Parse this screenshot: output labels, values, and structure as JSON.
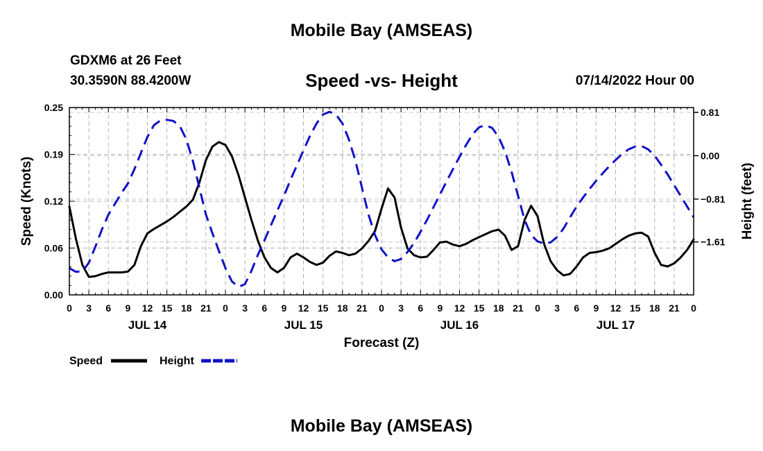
{
  "header": {
    "title": "Mobile Bay (AMSEAS)",
    "station": "GDXM6 at 26 Feet",
    "coords": "30.3590N  88.4200W",
    "chart_title": "Speed -vs- Height",
    "date": "07/14/2022 Hour 00",
    "footer_title": "Mobile Bay (AMSEAS)"
  },
  "chart_data": {
    "type": "line",
    "title": "Speed -vs- Height",
    "xlabel": "Forecast (Z)",
    "ylabel": "Speed (Knots)",
    "y2label": "Height (feet)",
    "x_ticks": [
      "0",
      "3",
      "6",
      "9",
      "12",
      "15",
      "18",
      "21",
      "0",
      "3",
      "6",
      "9",
      "12",
      "15",
      "18",
      "21",
      "0",
      "3",
      "6",
      "9",
      "12",
      "15",
      "18",
      "21",
      "0",
      "3",
      "6",
      "9",
      "12",
      "15",
      "18",
      "21",
      "0"
    ],
    "day_labels": [
      {
        "label": "JUL 14",
        "hour": 12
      },
      {
        "label": "JUL 15",
        "hour": 36
      },
      {
        "label": "JUL 16",
        "hour": 60
      },
      {
        "label": "JUL 17",
        "hour": 84
      }
    ],
    "xlim": [
      0,
      96
    ],
    "ylim": [
      0,
      0.25
    ],
    "y_ticks": [
      "0.00",
      "0.06",
      "0.12",
      "0.19",
      "0.25"
    ],
    "y_tick_values": [
      0,
      0.0625,
      0.125,
      0.1875,
      0.25
    ],
    "y2lim": [
      -2.6,
      0.9
    ],
    "y2_ticks": [
      "0.81",
      "0.00",
      "−0.81",
      "−1.61"
    ],
    "y2_tick_values": [
      0.81,
      0,
      -0.81,
      -1.61
    ],
    "legend": [
      {
        "name": "Speed",
        "color": "#000000",
        "style": "solid"
      },
      {
        "name": "Height",
        "color": "#1010c8",
        "style": "dashed"
      }
    ],
    "series": [
      {
        "name": "Speed",
        "axis": "left",
        "color": "#000000",
        "points": [
          [
            0,
            0.118
          ],
          [
            1,
            0.075
          ],
          [
            2,
            0.04
          ],
          [
            3,
            0.024
          ],
          [
            4,
            0.025
          ],
          [
            5,
            0.028
          ],
          [
            6,
            0.03
          ],
          [
            7,
            0.03
          ],
          [
            8,
            0.03
          ],
          [
            9,
            0.031
          ],
          [
            10,
            0.04
          ],
          [
            11,
            0.065
          ],
          [
            12,
            0.082
          ],
          [
            13,
            0.088
          ],
          [
            14,
            0.093
          ],
          [
            15,
            0.098
          ],
          [
            16,
            0.104
          ],
          [
            17,
            0.111
          ],
          [
            18,
            0.118
          ],
          [
            19,
            0.127
          ],
          [
            20,
            0.15
          ],
          [
            21,
            0.18
          ],
          [
            22,
            0.198
          ],
          [
            23,
            0.204
          ],
          [
            24,
            0.2
          ],
          [
            25,
            0.185
          ],
          [
            26,
            0.16
          ],
          [
            27,
            0.13
          ],
          [
            28,
            0.1
          ],
          [
            29,
            0.072
          ],
          [
            30,
            0.05
          ],
          [
            31,
            0.036
          ],
          [
            32,
            0.03
          ],
          [
            33,
            0.036
          ],
          [
            34,
            0.05
          ],
          [
            35,
            0.055
          ],
          [
            36,
            0.05
          ],
          [
            37,
            0.044
          ],
          [
            38,
            0.04
          ],
          [
            39,
            0.043
          ],
          [
            40,
            0.052
          ],
          [
            41,
            0.058
          ],
          [
            42,
            0.056
          ],
          [
            43,
            0.053
          ],
          [
            44,
            0.055
          ],
          [
            45,
            0.062
          ],
          [
            46,
            0.072
          ],
          [
            47,
            0.085
          ],
          [
            48,
            0.115
          ],
          [
            49,
            0.142
          ],
          [
            50,
            0.13
          ],
          [
            51,
            0.09
          ],
          [
            52,
            0.062
          ],
          [
            53,
            0.053
          ],
          [
            54,
            0.05
          ],
          [
            55,
            0.051
          ],
          [
            56,
            0.06
          ],
          [
            57,
            0.07
          ],
          [
            58,
            0.071
          ],
          [
            59,
            0.067
          ],
          [
            60,
            0.065
          ],
          [
            61,
            0.068
          ],
          [
            62,
            0.073
          ],
          [
            63,
            0.077
          ],
          [
            64,
            0.081
          ],
          [
            65,
            0.085
          ],
          [
            66,
            0.087
          ],
          [
            67,
            0.079
          ],
          [
            68,
            0.06
          ],
          [
            69,
            0.065
          ],
          [
            70,
            0.1
          ],
          [
            71,
            0.119
          ],
          [
            72,
            0.105
          ],
          [
            73,
            0.068
          ],
          [
            74,
            0.045
          ],
          [
            75,
            0.033
          ],
          [
            76,
            0.026
          ],
          [
            77,
            0.028
          ],
          [
            78,
            0.038
          ],
          [
            79,
            0.05
          ],
          [
            80,
            0.056
          ],
          [
            81,
            0.057
          ],
          [
            82,
            0.059
          ],
          [
            83,
            0.062
          ],
          [
            84,
            0.068
          ],
          [
            85,
            0.074
          ],
          [
            86,
            0.079
          ],
          [
            87,
            0.082
          ],
          [
            88,
            0.083
          ],
          [
            89,
            0.078
          ],
          [
            90,
            0.056
          ],
          [
            91,
            0.04
          ],
          [
            92,
            0.038
          ],
          [
            93,
            0.042
          ],
          [
            94,
            0.05
          ],
          [
            95,
            0.06
          ],
          [
            96,
            0.074
          ]
        ]
      },
      {
        "name": "Height",
        "axis": "right",
        "color": "#1010c8",
        "points": [
          [
            0,
            -2.1
          ],
          [
            1,
            -2.17
          ],
          [
            2,
            -2.16
          ],
          [
            3,
            -2.0
          ],
          [
            4,
            -1.7
          ],
          [
            5,
            -1.38
          ],
          [
            6,
            -1.1
          ],
          [
            7,
            -0.9
          ],
          [
            8,
            -0.7
          ],
          [
            9,
            -0.52
          ],
          [
            10,
            -0.25
          ],
          [
            11,
            0.05
          ],
          [
            12,
            0.35
          ],
          [
            13,
            0.57
          ],
          [
            14,
            0.66
          ],
          [
            15,
            0.67
          ],
          [
            16,
            0.65
          ],
          [
            17,
            0.55
          ],
          [
            18,
            0.3
          ],
          [
            19,
            -0.1
          ],
          [
            20,
            -0.6
          ],
          [
            21,
            -1.1
          ],
          [
            22,
            -1.45
          ],
          [
            23,
            -1.78
          ],
          [
            24,
            -2.1
          ],
          [
            25,
            -2.35
          ],
          [
            26,
            -2.45
          ],
          [
            27,
            -2.4
          ],
          [
            28,
            -2.15
          ],
          [
            29,
            -1.85
          ],
          [
            30,
            -1.58
          ],
          [
            31,
            -1.3
          ],
          [
            32,
            -1.02
          ],
          [
            33,
            -0.75
          ],
          [
            34,
            -0.45
          ],
          [
            35,
            -0.18
          ],
          [
            36,
            0.1
          ],
          [
            37,
            0.37
          ],
          [
            38,
            0.6
          ],
          [
            39,
            0.77
          ],
          [
            40,
            0.82
          ],
          [
            41,
            0.77
          ],
          [
            42,
            0.6
          ],
          [
            43,
            0.3
          ],
          [
            44,
            -0.1
          ],
          [
            45,
            -0.6
          ],
          [
            46,
            -1.1
          ],
          [
            47,
            -1.48
          ],
          [
            48,
            -1.75
          ],
          [
            49,
            -1.9
          ],
          [
            50,
            -1.97
          ],
          [
            51,
            -1.93
          ],
          [
            52,
            -1.8
          ],
          [
            53,
            -1.63
          ],
          [
            54,
            -1.42
          ],
          [
            55,
            -1.2
          ],
          [
            56,
            -0.96
          ],
          [
            57,
            -0.72
          ],
          [
            58,
            -0.48
          ],
          [
            59,
            -0.25
          ],
          [
            60,
            -0.02
          ],
          [
            61,
            0.2
          ],
          [
            62,
            0.4
          ],
          [
            63,
            0.53
          ],
          [
            64,
            0.57
          ],
          [
            65,
            0.52
          ],
          [
            66,
            0.35
          ],
          [
            67,
            0.08
          ],
          [
            68,
            -0.3
          ],
          [
            69,
            -0.75
          ],
          [
            70,
            -1.2
          ],
          [
            71,
            -1.48
          ],
          [
            72,
            -1.6
          ],
          [
            73,
            -1.64
          ],
          [
            74,
            -1.62
          ],
          [
            75,
            -1.52
          ],
          [
            76,
            -1.36
          ],
          [
            77,
            -1.15
          ],
          [
            78,
            -0.95
          ],
          [
            79,
            -0.78
          ],
          [
            80,
            -0.62
          ],
          [
            81,
            -0.47
          ],
          [
            82,
            -0.33
          ],
          [
            83,
            -0.2
          ],
          [
            84,
            -0.08
          ],
          [
            85,
            0.03
          ],
          [
            86,
            0.12
          ],
          [
            87,
            0.17
          ],
          [
            88,
            0.18
          ],
          [
            89,
            0.12
          ],
          [
            90,
            0.0
          ],
          [
            91,
            -0.17
          ],
          [
            92,
            -0.35
          ],
          [
            93,
            -0.55
          ],
          [
            94,
            -0.75
          ],
          [
            95,
            -0.95
          ],
          [
            96,
            -1.15
          ]
        ]
      }
    ]
  }
}
